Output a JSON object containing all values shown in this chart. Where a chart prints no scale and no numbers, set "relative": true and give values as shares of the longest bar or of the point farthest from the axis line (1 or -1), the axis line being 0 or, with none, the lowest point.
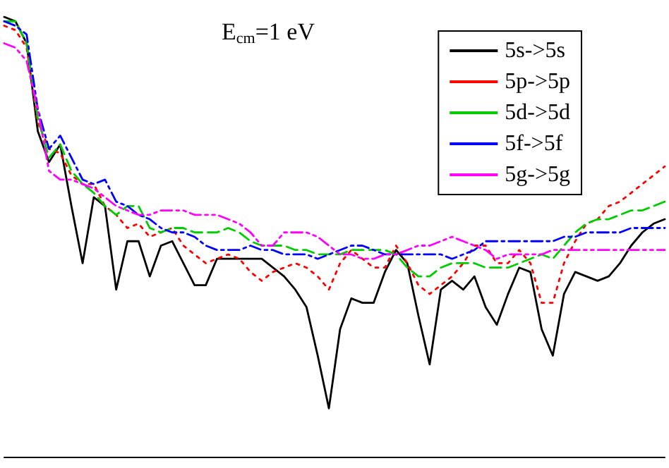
{
  "chart_data": {
    "type": "line",
    "relative": true,
    "legend": "top right",
    "marker": "none",
    "grid": false,
    "annotations": [
      "E$_{cm}$=1 eV"
    ],
    "categories": [
      null,
      null,
      null,
      null,
      null,
      null,
      null,
      null,
      null,
      null,
      null,
      null,
      null,
      null,
      null,
      null,
      null,
      null,
      null,
      null,
      null,
      null,
      null,
      null,
      null,
      null,
      null,
      null,
      null,
      null,
      null,
      null,
      null,
      null,
      null,
      null,
      null,
      null,
      null,
      null,
      null,
      null,
      null,
      null,
      null,
      null,
      null,
      null,
      null,
      null,
      null,
      null,
      null,
      null,
      null,
      null,
      null,
      null,
      null,
      null
    ],
    "series": [
      {
        "name": "5s->5s",
        "color": "#000000",
        "line_style": "solid",
        "values": [
          1.0,
          0.99,
          0.94,
          0.74,
          0.67,
          0.71,
          0.57,
          0.44,
          0.59,
          0.57,
          0.38,
          0.49,
          0.49,
          0.41,
          0.48,
          0.49,
          0.44,
          0.39,
          0.39,
          0.45,
          0.45,
          0.45,
          0.45,
          0.45,
          0.43,
          0.41,
          0.38,
          0.34,
          0.23,
          0.11,
          0.29,
          0.36,
          0.35,
          0.35,
          0.42,
          0.47,
          0.44,
          0.32,
          0.21,
          0.38,
          0.4,
          0.38,
          0.41,
          0.34,
          0.3,
          0.37,
          0.43,
          0.42,
          0.29,
          0.23,
          0.37,
          0.42,
          0.41,
          0.4,
          0.41,
          0.44,
          0.48,
          0.51,
          0.53,
          0.54
        ]
      },
      {
        "name": "5p->5p",
        "color": "#ff0000",
        "line_style": "dotted",
        "values": [
          0.98,
          0.97,
          0.93,
          0.76,
          0.7,
          0.69,
          0.64,
          0.62,
          0.62,
          0.57,
          0.55,
          0.52,
          0.53,
          0.5,
          0.51,
          0.52,
          0.48,
          0.46,
          0.44,
          0.45,
          0.46,
          0.45,
          0.42,
          0.4,
          0.42,
          0.43,
          0.44,
          0.43,
          0.41,
          0.38,
          0.44,
          0.47,
          0.45,
          0.43,
          0.43,
          0.48,
          0.44,
          0.39,
          0.37,
          0.39,
          0.41,
          0.44,
          0.48,
          0.48,
          0.44,
          0.44,
          0.47,
          0.44,
          0.35,
          0.35,
          0.44,
          0.49,
          0.53,
          0.54,
          0.57,
          0.58,
          0.6,
          0.62,
          0.64,
          0.66
        ]
      },
      {
        "name": "5d->5d",
        "color": "#00cc00",
        "line_style": "dashed",
        "values": [
          0.99,
          0.99,
          0.94,
          0.77,
          0.68,
          0.71,
          0.65,
          0.62,
          0.6,
          0.57,
          0.55,
          0.57,
          0.57,
          0.52,
          0.51,
          0.52,
          0.52,
          0.51,
          0.51,
          0.51,
          0.52,
          0.51,
          0.49,
          0.48,
          0.48,
          0.48,
          0.47,
          0.47,
          0.46,
          0.46,
          0.46,
          0.47,
          0.47,
          0.47,
          0.47,
          0.46,
          0.43,
          0.41,
          0.41,
          0.43,
          0.44,
          0.44,
          0.44,
          0.43,
          0.43,
          0.43,
          0.44,
          0.45,
          0.46,
          0.45,
          0.48,
          0.51,
          0.53,
          0.54,
          0.54,
          0.55,
          0.56,
          0.56,
          0.57,
          0.58
        ]
      },
      {
        "name": "5f->5f",
        "color": "#0000ff",
        "line_style": "dashdot",
        "values": [
          0.99,
          0.98,
          0.96,
          0.79,
          0.7,
          0.73,
          0.68,
          0.63,
          0.62,
          0.63,
          0.58,
          0.57,
          0.55,
          0.54,
          0.52,
          0.51,
          0.51,
          0.5,
          0.48,
          0.47,
          0.47,
          0.47,
          0.48,
          0.47,
          0.47,
          0.46,
          0.46,
          0.46,
          0.45,
          0.46,
          0.47,
          0.48,
          0.48,
          0.47,
          0.46,
          0.46,
          0.46,
          0.46,
          0.46,
          0.46,
          0.45,
          0.46,
          0.47,
          0.49,
          0.49,
          0.49,
          0.49,
          0.49,
          0.49,
          0.49,
          0.5,
          0.5,
          0.51,
          0.51,
          0.51,
          0.51,
          0.52,
          0.52,
          0.52,
          0.52
        ]
      },
      {
        "name": "5g->5g",
        "color": "#ff00ff",
        "line_style": "dashdotdot",
        "values": [
          0.94,
          0.93,
          0.9,
          0.79,
          0.65,
          0.63,
          0.63,
          0.62,
          0.61,
          0.59,
          0.57,
          0.56,
          0.55,
          0.55,
          0.56,
          0.56,
          0.56,
          0.55,
          0.55,
          0.55,
          0.54,
          0.53,
          0.51,
          0.48,
          0.48,
          0.51,
          0.51,
          0.51,
          0.5,
          0.48,
          0.46,
          0.46,
          0.45,
          0.45,
          0.46,
          0.46,
          0.47,
          0.48,
          0.48,
          0.49,
          0.5,
          0.49,
          0.48,
          0.47,
          0.45,
          0.46,
          0.46,
          0.46,
          0.46,
          0.47,
          0.47,
          0.47,
          0.47,
          0.47,
          0.47,
          0.47,
          0.47,
          0.47,
          0.47,
          0.47
        ]
      }
    ]
  }
}
